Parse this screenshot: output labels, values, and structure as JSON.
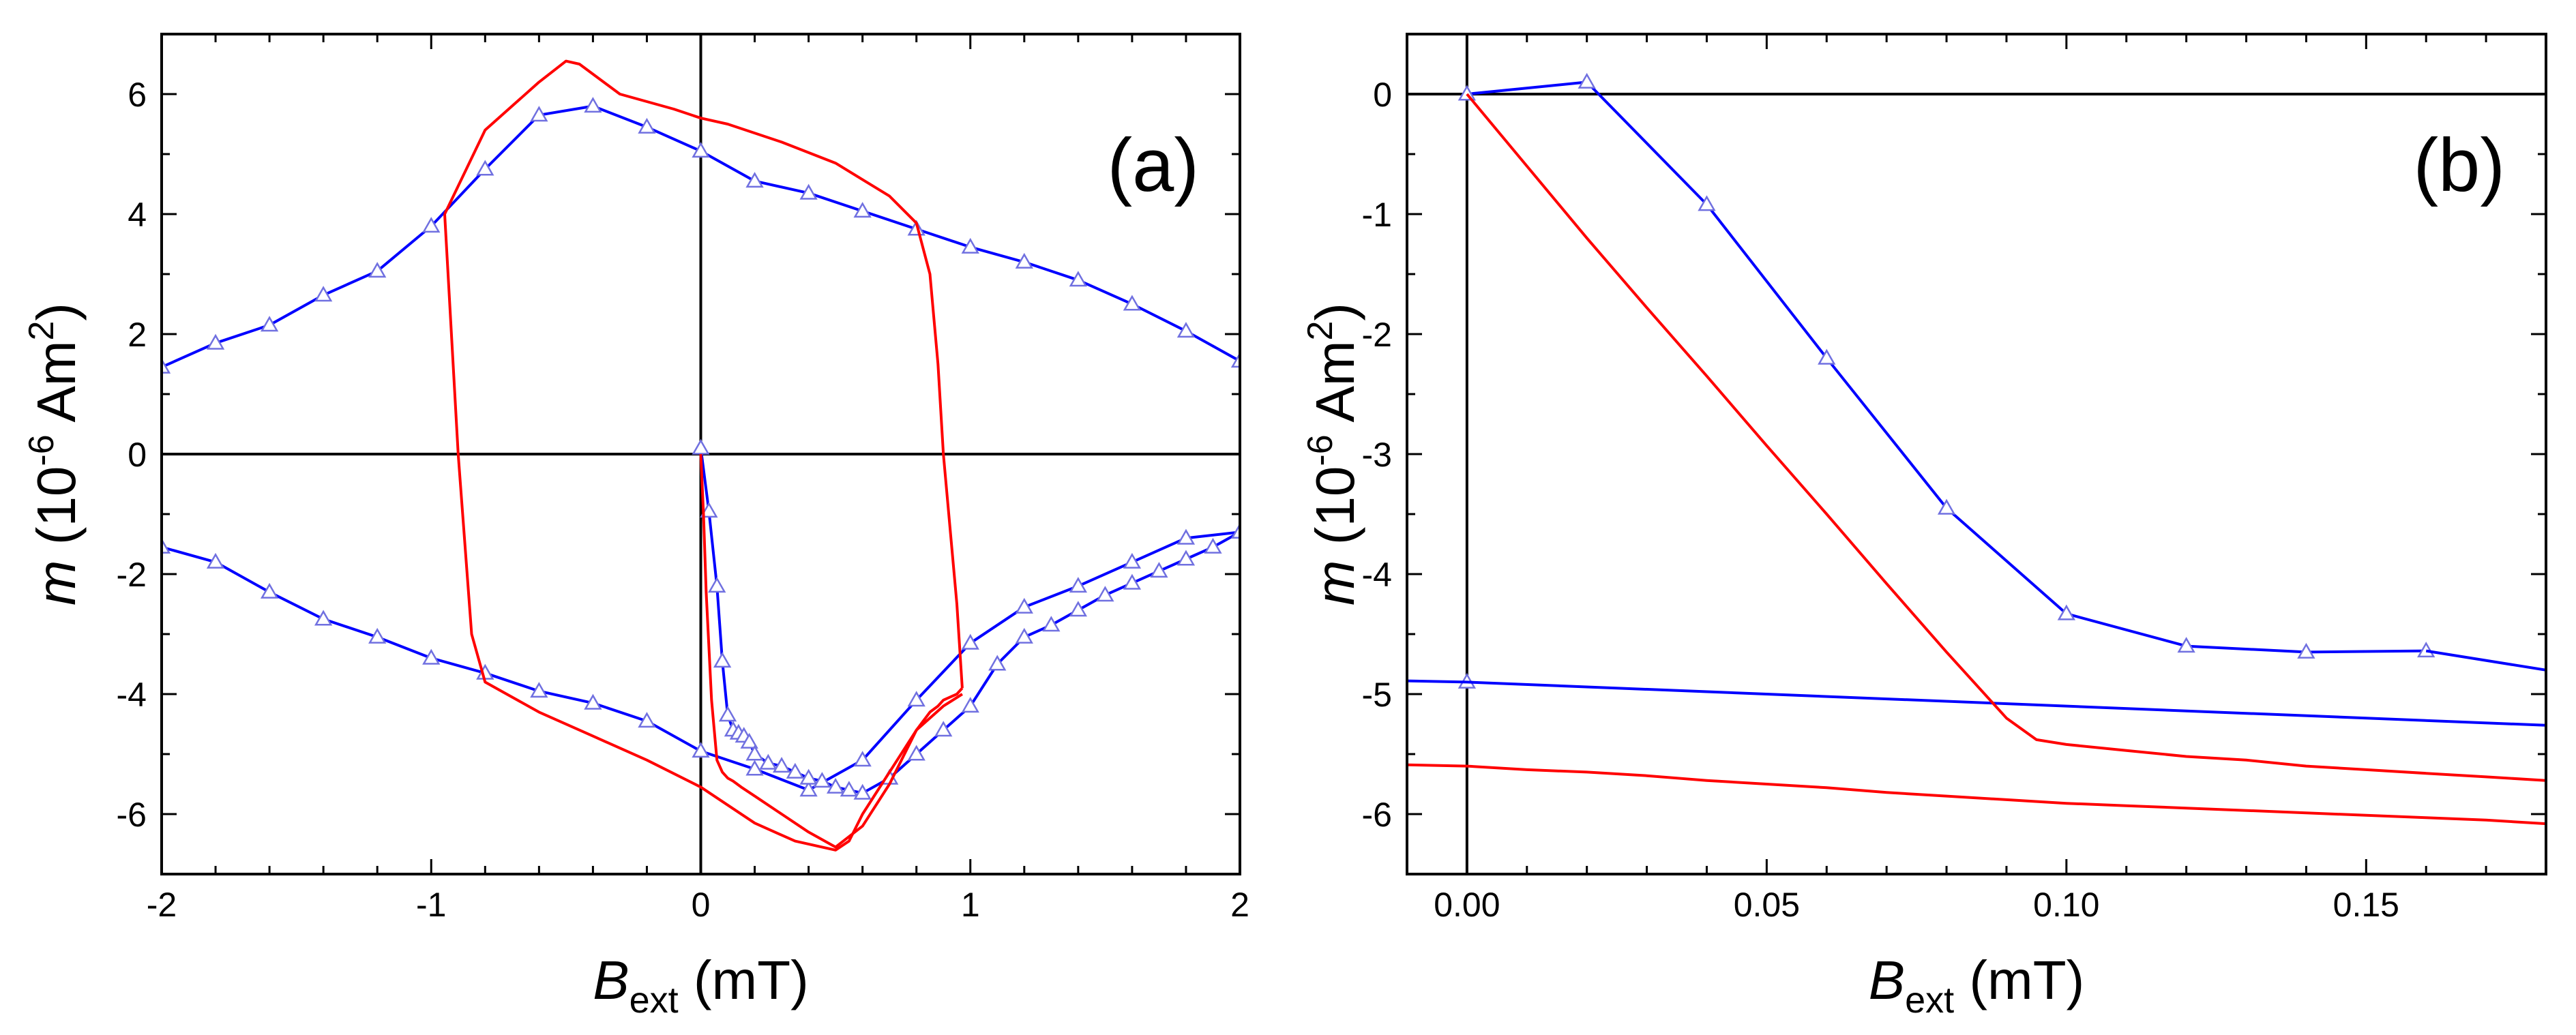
{
  "chart_data": [
    {
      "type": "line",
      "panel_label": "(a)",
      "xlabel": {
        "main": "B",
        "sub": "ext",
        "unit": " (mT)"
      },
      "ylabel": {
        "italic": "m",
        "pre": " (10",
        "sup1": "-6",
        "mid": " Am",
        "sup2": "2",
        "post": ")"
      },
      "xlim": [
        -2,
        2
      ],
      "ylim": [
        -7,
        7
      ],
      "xticks": [
        -2,
        -1,
        0,
        1,
        2
      ],
      "xtick_labels": [
        "-2",
        "-1",
        "0",
        "1",
        "2"
      ],
      "yticks": [
        -6,
        -4,
        -2,
        0,
        2,
        4,
        6
      ],
      "ytick_labels": [
        "-6",
        "-4",
        "-2",
        "0",
        "2",
        "4",
        "6"
      ],
      "grid": false,
      "series": [
        {
          "color": "#0000ff",
          "marker": "triangle",
          "x": [
            -2.0,
            -1.8,
            -1.6,
            -1.4,
            -1.2,
            -1.0,
            -0.8,
            -0.6,
            -0.4,
            -0.2,
            0.0,
            0.2,
            0.4,
            0.6,
            0.8,
            1.0,
            1.2,
            1.4,
            1.6,
            1.8,
            2.0
          ],
          "y": [
            1.45,
            1.85,
            2.15,
            2.65,
            3.05,
            3.8,
            4.75,
            5.65,
            5.8,
            5.45,
            5.05,
            4.55,
            4.35,
            4.05,
            3.75,
            3.45,
            3.2,
            2.9,
            2.5,
            2.05,
            1.55
          ]
        },
        {
          "color": "#0000ff",
          "marker": "triangle",
          "x": [
            -2.0,
            -1.8,
            -1.6,
            -1.4,
            -1.2,
            -1.0,
            -0.8,
            -0.6,
            -0.4,
            -0.2,
            0.0,
            0.2,
            0.4,
            0.6,
            0.8,
            1.0,
            1.2,
            1.4,
            1.6,
            1.8,
            2.0
          ],
          "y": [
            -1.55,
            -1.8,
            -2.3,
            -2.75,
            -3.05,
            -3.4,
            -3.65,
            -3.95,
            -4.15,
            -4.45,
            -4.95,
            -5.25,
            -5.6,
            -5.1,
            -4.1,
            -3.15,
            -2.55,
            -2.2,
            -1.8,
            -1.4,
            -1.3
          ]
        },
        {
          "color": "#0000ff",
          "marker": "triangle",
          "x": [
            0.0,
            0.03,
            0.06,
            0.08,
            0.1,
            0.12,
            0.14,
            0.16,
            0.18,
            0.2,
            0.25,
            0.3,
            0.35,
            0.4,
            0.45,
            0.5,
            0.55,
            0.6,
            0.7,
            0.8,
            0.9,
            1.0,
            1.1,
            1.2,
            1.3,
            1.4,
            1.5,
            1.6,
            1.7,
            1.8,
            1.9,
            2.0
          ],
          "y": [
            0.1,
            -0.95,
            -2.2,
            -3.45,
            -4.35,
            -4.6,
            -4.65,
            -4.7,
            -4.8,
            -5.0,
            -5.15,
            -5.2,
            -5.3,
            -5.4,
            -5.45,
            -5.55,
            -5.6,
            -5.65,
            -5.4,
            -5.0,
            -4.6,
            -4.2,
            -3.5,
            -3.05,
            -2.85,
            -2.6,
            -2.35,
            -2.15,
            -1.95,
            -1.75,
            -1.55,
            -1.3
          ]
        },
        {
          "color": "#ff0000",
          "marker": "none",
          "x": [
            0.0,
            0.01,
            0.02,
            0.04,
            0.06,
            0.08,
            0.1,
            0.12,
            0.15,
            0.2,
            0.3,
            0.4,
            0.5,
            0.6,
            0.7,
            0.8,
            0.85,
            0.88,
            0.9,
            0.95,
            0.97
          ],
          "y": [
            0.0,
            -1.0,
            -2.3,
            -4.1,
            -5.1,
            -5.3,
            -5.4,
            -5.45,
            -5.55,
            -5.7,
            -6.0,
            -6.3,
            -6.55,
            -6.2,
            -5.5,
            -4.6,
            -4.3,
            -4.2,
            -4.1,
            -4.0,
            -3.9
          ]
        },
        {
          "color": "#ff0000",
          "marker": "none",
          "x": [
            0.97,
            0.95,
            0.9,
            0.88,
            0.85,
            0.8,
            0.7,
            0.5,
            0.3,
            0.1,
            0.0,
            -0.1,
            -0.3,
            -0.45,
            -0.5,
            -0.6,
            -0.8,
            -0.95
          ],
          "y": [
            -3.9,
            -2.5,
            0.0,
            1.5,
            3.0,
            3.85,
            4.3,
            4.85,
            5.2,
            5.5,
            5.6,
            5.75,
            6.0,
            6.5,
            6.55,
            6.2,
            5.4,
            4.0
          ]
        },
        {
          "color": "#ff0000",
          "marker": "none",
          "x": [
            -0.95,
            -0.9,
            -0.85,
            -0.8,
            -0.6,
            -0.4,
            -0.2,
            0.0,
            0.2,
            0.35,
            0.45,
            0.5,
            0.55,
            0.6,
            0.7,
            0.8,
            0.9,
            0.97
          ],
          "y": [
            4.0,
            0.0,
            -3.0,
            -3.8,
            -4.3,
            -4.7,
            -5.1,
            -5.55,
            -6.15,
            -6.45,
            -6.55,
            -6.6,
            -6.45,
            -6.0,
            -5.3,
            -4.6,
            -4.2,
            -4.0
          ]
        }
      ]
    },
    {
      "type": "line",
      "panel_label": "(b)",
      "xlabel": {
        "main": "B",
        "sub": "ext",
        "unit": " (mT)"
      },
      "ylabel": {
        "italic": "m",
        "pre": " (10",
        "sup1": "-6",
        "mid": " Am",
        "sup2": "2",
        "post": ")"
      },
      "xlim": [
        -0.01,
        0.18
      ],
      "ylim": [
        -6.5,
        0.5
      ],
      "xticks": [
        0.0,
        0.05,
        0.1,
        0.15
      ],
      "xtick_labels": [
        "0.00",
        "0.05",
        "0.10",
        "0.15"
      ],
      "yticks": [
        -6,
        -5,
        -4,
        -3,
        -2,
        -1,
        0
      ],
      "ytick_labels": [
        "-6",
        "-5",
        "-4",
        "-3",
        "-2",
        "-1",
        "0"
      ],
      "grid": false,
      "series": [
        {
          "color": "#0000ff",
          "marker": "triangle",
          "x": [
            0.0,
            0.02,
            0.04,
            0.06,
            0.08,
            0.1,
            0.12,
            0.14,
            0.16
          ],
          "y": [
            0.0,
            0.1,
            -0.92,
            -2.2,
            -3.45,
            -4.33,
            -4.6,
            -4.65,
            -4.64
          ]
        },
        {
          "color": "#0000ff",
          "marker": "none",
          "x": [
            0.16,
            0.18
          ],
          "y": [
            -4.64,
            -4.8
          ]
        },
        {
          "color": "#0000ff",
          "marker": "triangle",
          "x": [
            0.0
          ],
          "y": [
            -4.9
          ]
        },
        {
          "color": "#0000ff",
          "marker": "none",
          "x": [
            -0.01,
            0.0,
            0.18
          ],
          "y": [
            -4.89,
            -4.9,
            -5.26
          ]
        },
        {
          "color": "#ff0000",
          "marker": "none",
          "x": [
            0.0,
            0.01,
            0.02,
            0.03,
            0.04,
            0.05,
            0.06,
            0.07,
            0.08,
            0.09,
            0.095,
            0.1,
            0.11,
            0.12,
            0.13,
            0.14,
            0.15,
            0.16,
            0.17,
            0.18
          ],
          "y": [
            0.0,
            -0.6,
            -1.2,
            -1.78,
            -2.35,
            -2.93,
            -3.5,
            -4.08,
            -4.65,
            -5.2,
            -5.38,
            -5.42,
            -5.47,
            -5.52,
            -5.55,
            -5.6,
            -5.63,
            -5.66,
            -5.69,
            -5.72
          ]
        },
        {
          "color": "#ff0000",
          "marker": "none",
          "x": [
            -0.01,
            0.0,
            0.01,
            0.02,
            0.03,
            0.04,
            0.05,
            0.06,
            0.07,
            0.08,
            0.09,
            0.1,
            0.11,
            0.12,
            0.13,
            0.14,
            0.15,
            0.16,
            0.17,
            0.18
          ],
          "y": [
            -5.59,
            -5.6,
            -5.63,
            -5.65,
            -5.68,
            -5.72,
            -5.75,
            -5.78,
            -5.82,
            -5.85,
            -5.88,
            -5.91,
            -5.93,
            -5.95,
            -5.97,
            -5.99,
            -6.01,
            -6.03,
            -6.05,
            -6.08
          ]
        }
      ]
    }
  ]
}
